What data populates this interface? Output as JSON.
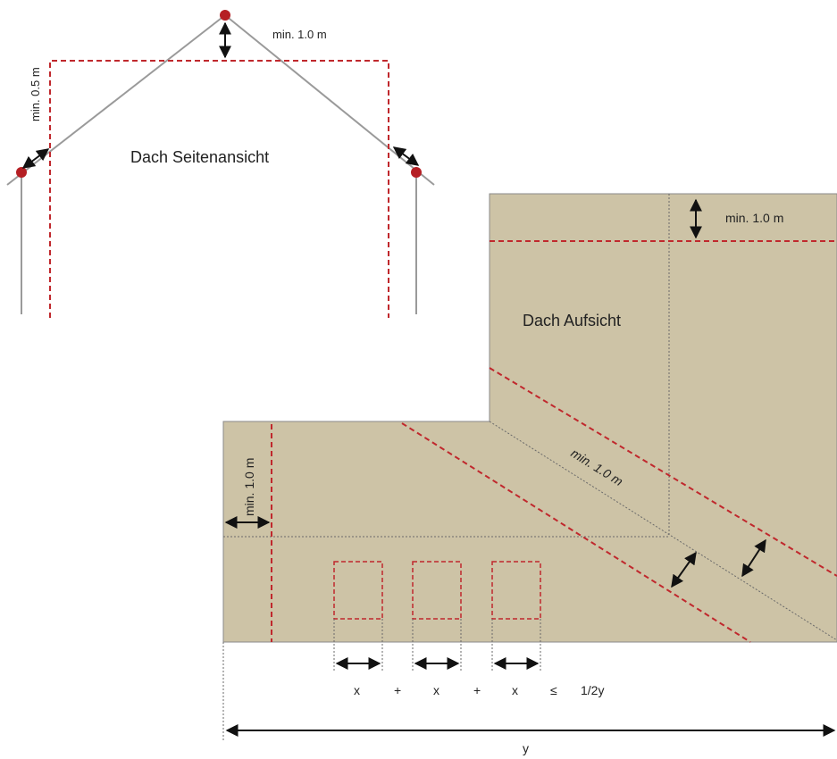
{
  "side_view": {
    "title": "Dach Seitenansicht",
    "ridge_distance_label": "min. 1.0 m",
    "edge_distance_label": "min. 0.5 m"
  },
  "top_view": {
    "title": "Dach Aufsicht",
    "top_edge_label": "min. 1.0 m",
    "left_edge_label": "min. 1.0 m",
    "valley_label": "min. 1.0 m",
    "roof_color": "#cdc3a6"
  },
  "formula": {
    "x1": "x",
    "plus1": "+",
    "x2": "x",
    "plus2": "+",
    "x3": "x",
    "leq": "≤",
    "half_y": "1/2y",
    "y": "y"
  },
  "colors": {
    "dashed_limit": "#c0282d",
    "point": "#b51f24",
    "line": "#9a9a9a",
    "arrow": "#111111"
  }
}
